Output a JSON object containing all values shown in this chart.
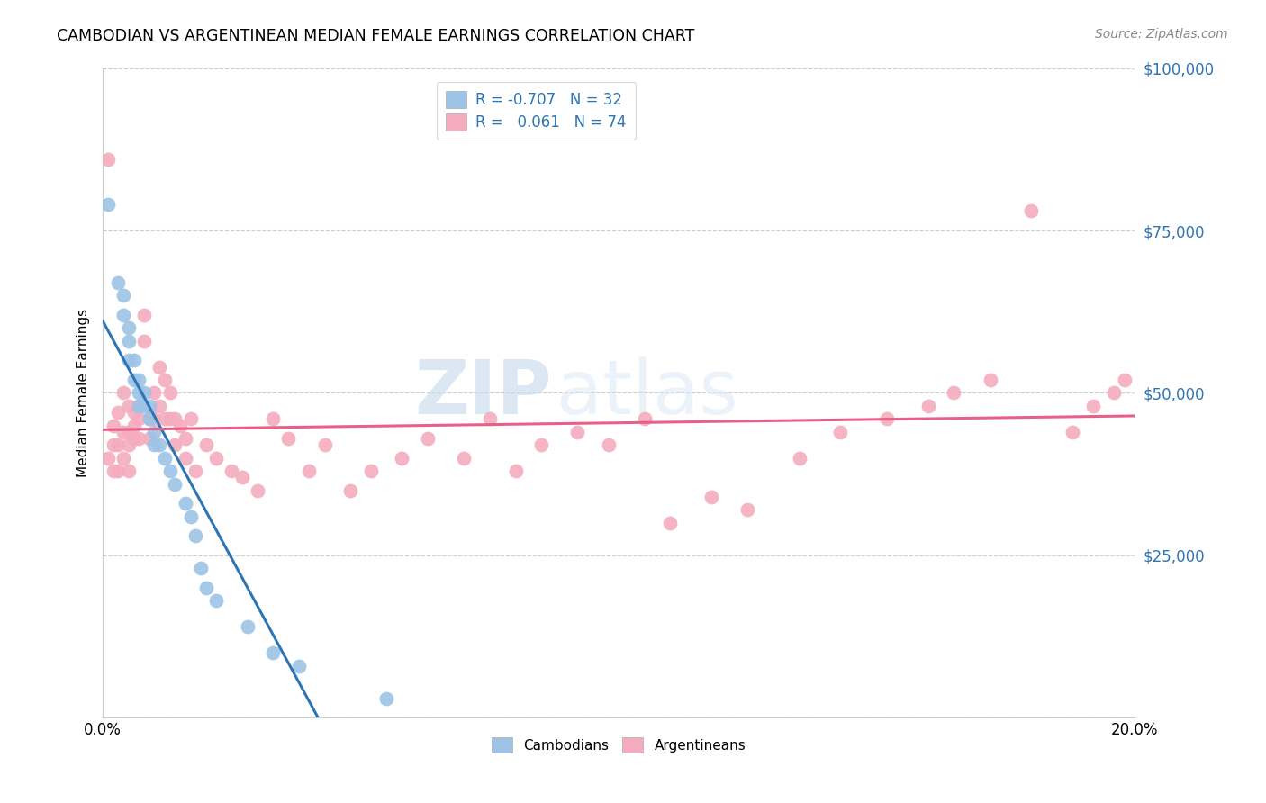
{
  "title": "CAMBODIAN VS ARGENTINEAN MEDIAN FEMALE EARNINGS CORRELATION CHART",
  "source": "Source: ZipAtlas.com",
  "ylabel": "Median Female Earnings",
  "watermark_zip": "ZIP",
  "watermark_atlas": "atlas",
  "x_min": 0.0,
  "x_max": 0.2,
  "y_min": 0,
  "y_max": 100000,
  "y_ticks": [
    0,
    25000,
    50000,
    75000,
    100000
  ],
  "y_tick_labels": [
    "",
    "$25,000",
    "$50,000",
    "$75,000",
    "$100,000"
  ],
  "x_ticks": [
    0.0,
    0.04,
    0.08,
    0.12,
    0.16,
    0.2
  ],
  "x_tick_labels": [
    "0.0%",
    "",
    "",
    "",
    "",
    "20.0%"
  ],
  "legend_cambodians_R": "-0.707",
  "legend_cambodians_N": "32",
  "legend_argentineans_R": "0.061",
  "legend_argentineans_N": "74",
  "cambodian_color": "#9dc3e6",
  "argentinean_color": "#f4acbe",
  "trend_cambodian_color": "#2e75b6",
  "trend_argentinean_color": "#e8608a",
  "cambodian_x": [
    0.001,
    0.003,
    0.004,
    0.004,
    0.005,
    0.005,
    0.005,
    0.006,
    0.006,
    0.007,
    0.007,
    0.007,
    0.008,
    0.008,
    0.009,
    0.009,
    0.01,
    0.01,
    0.011,
    0.012,
    0.013,
    0.014,
    0.016,
    0.017,
    0.018,
    0.019,
    0.02,
    0.022,
    0.028,
    0.033,
    0.038,
    0.055
  ],
  "cambodian_y": [
    79000,
    67000,
    65000,
    62000,
    60000,
    58000,
    55000,
    55000,
    52000,
    52000,
    50000,
    48000,
    50000,
    48000,
    48000,
    46000,
    44000,
    42000,
    42000,
    40000,
    38000,
    36000,
    33000,
    31000,
    28000,
    23000,
    20000,
    18000,
    14000,
    10000,
    8000,
    3000
  ],
  "argentinean_x": [
    0.001,
    0.001,
    0.002,
    0.002,
    0.002,
    0.003,
    0.003,
    0.003,
    0.004,
    0.004,
    0.004,
    0.005,
    0.005,
    0.005,
    0.005,
    0.006,
    0.006,
    0.006,
    0.007,
    0.007,
    0.007,
    0.008,
    0.008,
    0.009,
    0.009,
    0.01,
    0.01,
    0.011,
    0.011,
    0.012,
    0.012,
    0.013,
    0.013,
    0.014,
    0.014,
    0.015,
    0.016,
    0.016,
    0.017,
    0.018,
    0.02,
    0.022,
    0.025,
    0.027,
    0.03,
    0.033,
    0.036,
    0.04,
    0.043,
    0.048,
    0.052,
    0.058,
    0.063,
    0.07,
    0.075,
    0.08,
    0.085,
    0.092,
    0.098,
    0.105,
    0.11,
    0.118,
    0.125,
    0.135,
    0.143,
    0.152,
    0.16,
    0.165,
    0.172,
    0.18,
    0.188,
    0.192,
    0.196,
    0.198
  ],
  "argentinean_y": [
    40000,
    86000,
    42000,
    38000,
    45000,
    38000,
    47000,
    42000,
    50000,
    44000,
    40000,
    48000,
    44000,
    42000,
    38000,
    47000,
    45000,
    43000,
    48000,
    46000,
    43000,
    62000,
    58000,
    46000,
    43000,
    50000,
    46000,
    54000,
    48000,
    52000,
    46000,
    50000,
    46000,
    42000,
    46000,
    45000,
    43000,
    40000,
    46000,
    38000,
    42000,
    40000,
    38000,
    37000,
    35000,
    46000,
    43000,
    38000,
    42000,
    35000,
    38000,
    40000,
    43000,
    40000,
    46000,
    38000,
    42000,
    44000,
    42000,
    46000,
    30000,
    34000,
    32000,
    40000,
    44000,
    46000,
    48000,
    50000,
    52000,
    78000,
    44000,
    48000,
    50000,
    52000
  ]
}
